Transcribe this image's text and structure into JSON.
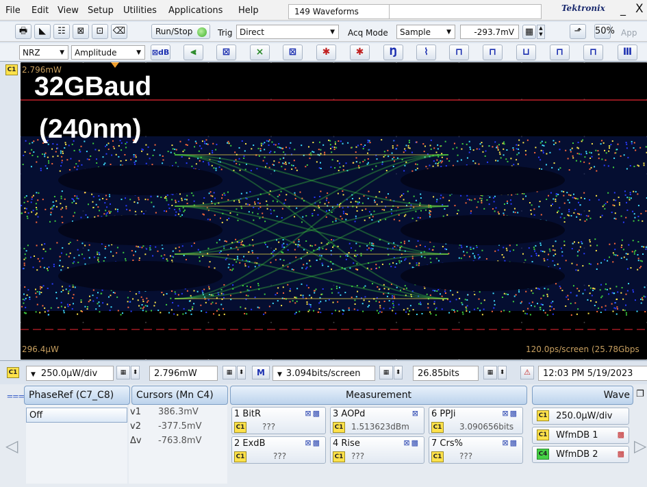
{
  "menu": [
    "File",
    "Edit",
    "View",
    "Setup",
    "Utilities",
    "Applications",
    "Help"
  ],
  "waveforms_count": "149 Waveforms",
  "brand": "Tektronix",
  "window": {
    "minimize": "_",
    "close": "X"
  },
  "toolbar1": {
    "run_stop": "Run/Stop",
    "trig_label": "Trig",
    "trig_value": "Direct",
    "acq_label": "Acq Mode",
    "acq_value": "Sample",
    "voltage": "-293.7mV",
    "app_label": "App"
  },
  "toolbar2": {
    "format_value": "NRZ",
    "measure_value": "Amplitude"
  },
  "scope": {
    "top_level": "2.796mW",
    "bottom_level": "296.4μW",
    "timebase": "120.0ps/screen (25.78Gbps",
    "overlay_title": "32GBaud",
    "overlay_subtitle": "(240nm)"
  },
  "control_strip": {
    "channel": "C1",
    "scale": "250.0μW/div",
    "offset": "2.796mW",
    "bits_per_screen": "3.094bits/screen",
    "position_bits": "26.85bits",
    "datetime": "12:03 PM 5/19/2023"
  },
  "tabs": {
    "phase_ref": "PhaseRef (C7_C8)",
    "cursors": "Cursors (Mn C4)",
    "measurement": "Measurement",
    "wave": "Wave"
  },
  "phase_ref_value": "Off",
  "cursors": [
    {
      "label": "v1",
      "value": "386.3mV"
    },
    {
      "label": "v2",
      "value": "-377.5mV"
    },
    {
      "label": "Δv",
      "value": "-763.8mV"
    }
  ],
  "measurements": [
    {
      "name": "1 BitR",
      "value": "???"
    },
    {
      "name": "3 AOPd",
      "value": "1.513623dBm"
    },
    {
      "name": "6 PPJi",
      "value": "3.090656bits"
    },
    {
      "name": "2 ExdB",
      "value": "???"
    },
    {
      "name": "4 Rise",
      "value": "???"
    },
    {
      "name": "7 Crs%",
      "value": "???"
    }
  ],
  "wave_panel": [
    {
      "badge": "C1",
      "label": "250.0μW/div"
    },
    {
      "badge": "C1",
      "label": "WfmDB 1"
    },
    {
      "badge": "C4",
      "label": "WfmDB 2"
    }
  ],
  "colors": {
    "trace_red": "#c0202a",
    "eye_hot": "#ffe84a",
    "eye_mid": "#3fd03f",
    "eye_cool": "#2a3cff",
    "c1_yellow": "#ffe24a",
    "c4_green": "#46d246"
  }
}
